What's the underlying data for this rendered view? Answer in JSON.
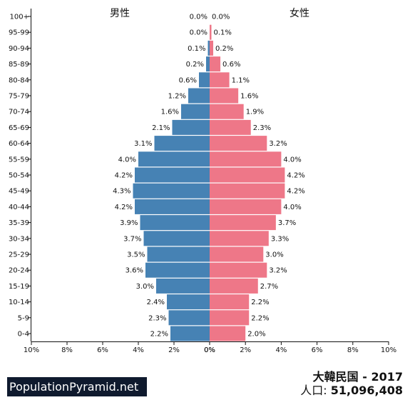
{
  "chart_data": {
    "type": "bar",
    "orientation": "horizontal-pyramid",
    "left_title": "男性",
    "right_title": "女性",
    "categories": [
      "100+",
      "95-99",
      "90-94",
      "85-89",
      "80-84",
      "75-79",
      "70-74",
      "65-69",
      "60-64",
      "55-59",
      "50-54",
      "45-49",
      "40-44",
      "35-39",
      "30-34",
      "25-29",
      "20-24",
      "15-19",
      "10-14",
      "5-9",
      "0-4"
    ],
    "series": [
      {
        "name": "男性",
        "color": "#4682b4",
        "values": [
          0.0,
          0.0,
          0.1,
          0.2,
          0.6,
          1.2,
          1.6,
          2.1,
          3.1,
          4.0,
          4.2,
          4.3,
          4.2,
          3.9,
          3.7,
          3.5,
          3.6,
          3.0,
          2.4,
          2.3,
          2.2
        ],
        "labels": [
          "0.0%",
          "0.0%",
          "0.1%",
          "0.2%",
          "0.6%",
          "1.2%",
          "1.6%",
          "2.1%",
          "3.1%",
          "4.0%",
          "4.2%",
          "4.3%",
          "4.2%",
          "3.9%",
          "3.7%",
          "3.5%",
          "3.6%",
          "3.0%",
          "2.4%",
          "2.3%",
          "2.2%"
        ]
      },
      {
        "name": "女性",
        "color": "#ee7788",
        "values": [
          0.0,
          0.1,
          0.2,
          0.6,
          1.1,
          1.6,
          1.9,
          2.3,
          3.2,
          4.0,
          4.2,
          4.2,
          4.0,
          3.7,
          3.3,
          3.0,
          3.2,
          2.7,
          2.2,
          2.2,
          2.0
        ],
        "labels": [
          "0.0%",
          "0.1%",
          "0.2%",
          "0.6%",
          "1.1%",
          "1.6%",
          "1.9%",
          "2.3%",
          "3.2%",
          "4.0%",
          "4.2%",
          "4.2%",
          "4.0%",
          "3.7%",
          "3.3%",
          "3.0%",
          "3.2%",
          "2.7%",
          "2.2%",
          "2.2%",
          "2.0%"
        ]
      }
    ],
    "xlim": [
      -10,
      10
    ],
    "x_ticks_left": [
      "10%",
      "8%",
      "6%",
      "4%",
      "2%",
      "0%"
    ],
    "x_ticks_right": [
      "0%",
      "2%",
      "4%",
      "6%",
      "8%",
      "10%"
    ],
    "grid": false
  },
  "footer": {
    "watermark": "PopulationPyramid.net",
    "country_year": "大韓民国 - 2017",
    "population_label": "人口: ",
    "population_value": "51,096,408"
  }
}
